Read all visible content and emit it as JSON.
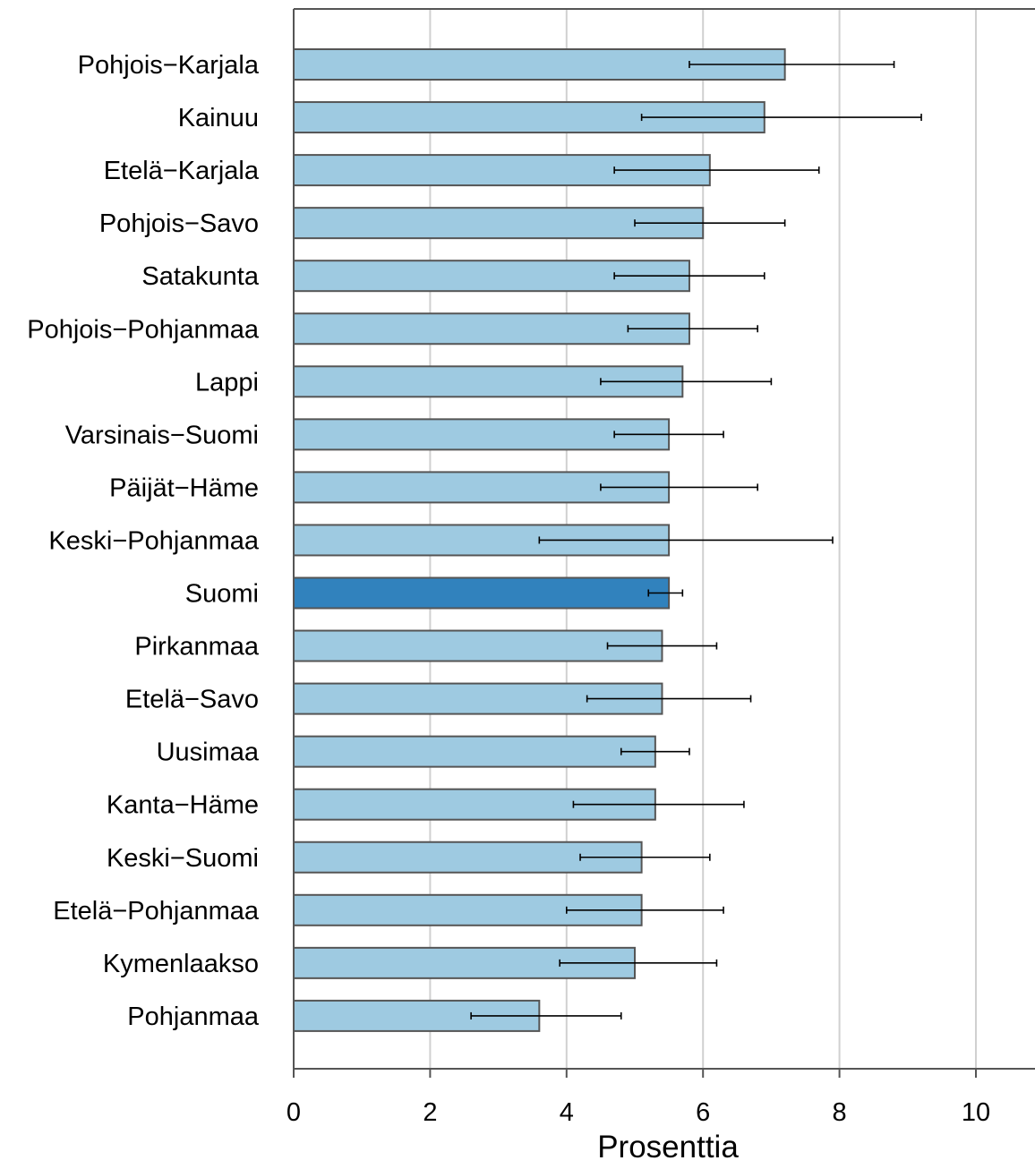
{
  "chart_data": {
    "type": "bar",
    "orientation": "horizontal",
    "xlabel": "Prosenttia",
    "xlim": [
      0,
      10.7
    ],
    "xticks": [
      0,
      2,
      4,
      6,
      8,
      10
    ],
    "grid": "vertical",
    "colors": {
      "default": "#9ecae1",
      "highlight": "#3182bd",
      "error_bar": "#000000"
    },
    "highlight_category": "Suomi",
    "categories": [
      "Pohjois−Karjala",
      "Kainuu",
      "Etelä−Karjala",
      "Pohjois−Savo",
      "Satakunta",
      "Pohjois−Pohjanmaa",
      "Lappi",
      "Varsinais−Suomi",
      "Päijät−Häme",
      "Keski−Pohjanmaa",
      "Suomi",
      "Pirkanmaa",
      "Etelä−Savo",
      "Uusimaa",
      "Kanta−Häme",
      "Keski−Suomi",
      "Etelä−Pohjanmaa",
      "Kymenlaakso",
      "Pohjanmaa"
    ],
    "values": [
      7.2,
      6.9,
      6.1,
      6.0,
      5.8,
      5.8,
      5.7,
      5.5,
      5.5,
      5.5,
      5.5,
      5.4,
      5.4,
      5.3,
      5.3,
      5.1,
      5.1,
      5.0,
      3.6
    ],
    "ci_low": [
      5.8,
      5.1,
      4.7,
      5.0,
      4.7,
      4.9,
      4.5,
      4.7,
      4.5,
      3.6,
      5.2,
      4.6,
      4.3,
      4.8,
      4.1,
      4.2,
      4.0,
      3.9,
      2.6
    ],
    "ci_high": [
      8.8,
      9.2,
      7.7,
      7.2,
      6.9,
      6.8,
      7.0,
      6.3,
      6.8,
      7.9,
      5.7,
      6.2,
      6.7,
      5.8,
      6.6,
      6.1,
      6.3,
      6.2,
      4.8
    ]
  }
}
